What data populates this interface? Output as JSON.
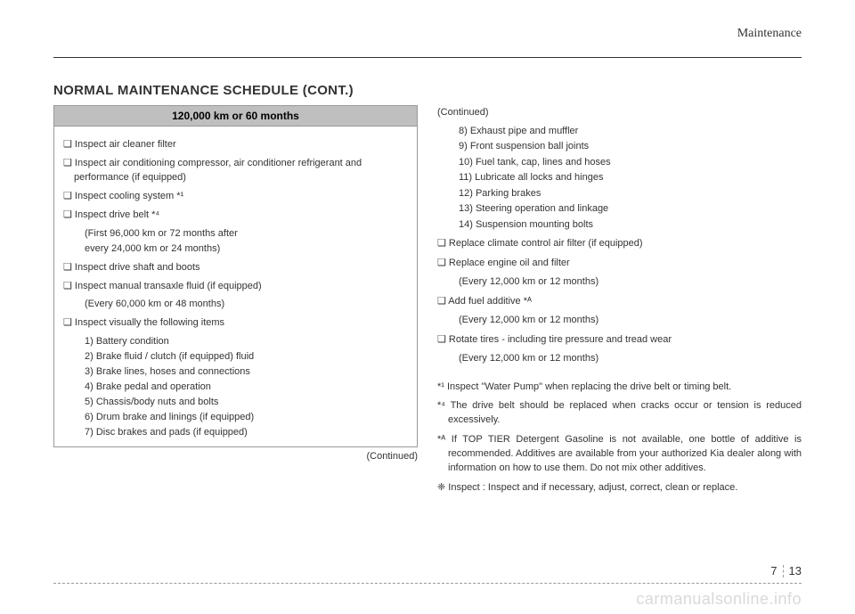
{
  "header": {
    "section": "Maintenance",
    "title": "NORMAL MAINTENANCE SCHEDULE (CONT.)"
  },
  "left": {
    "interval": "120,000 km or 60 months",
    "items": [
      {
        "text": "❑ Inspect air cleaner filter"
      },
      {
        "text": "❑ Inspect air conditioning compressor, air conditioner refrigerant and performance (if equipped)"
      },
      {
        "text": "❑ Inspect cooling system *¹"
      },
      {
        "text": "❑ Inspect drive belt *⁴",
        "subs": [
          "(First 96,000 km or 72 months after",
          " every 24,000 km or 24 months)"
        ]
      },
      {
        "text": "❑ Inspect drive shaft and boots"
      },
      {
        "text": "❑ Inspect manual transaxle fluid (if equipped)",
        "subs": [
          "(Every 60,000 km or 48 months)"
        ]
      },
      {
        "text": "❑ Inspect visually the following items",
        "subs": [
          "1) Battery condition",
          "2) Brake fluid / clutch (if equipped) fluid",
          "3) Brake lines, hoses and connections",
          "4) Brake pedal and operation",
          "5) Chassis/body nuts and bolts",
          "6) Drum brake and linings (if equipped)",
          "7) Disc brakes and pads (if equipped)"
        ]
      }
    ],
    "continued": "(Continued)"
  },
  "right": {
    "continued": "(Continued)",
    "cont_subs": [
      "8) Exhaust pipe and muffler",
      "9) Front suspension ball joints",
      "10) Fuel tank, cap, lines and hoses",
      "11) Lubricate all locks and hinges",
      "12) Parking brakes",
      "13) Steering operation and linkage",
      "14) Suspension mounting bolts"
    ],
    "items": [
      {
        "text": "❑ Replace climate control air filter (if equipped)"
      },
      {
        "text": "❑ Replace engine oil and filter",
        "subs": [
          "(Every 12,000 km or 12 months)"
        ]
      },
      {
        "text": "❑ Add fuel additive *ᴬ",
        "subs": [
          "(Every 12,000 km or 12 months)"
        ]
      },
      {
        "text": "❑ Rotate tires - including tire pressure and tread wear",
        "subs": [
          "(Every 12,000 km or 12 months)"
        ]
      }
    ],
    "footnotes": [
      "*¹ Inspect \"Water Pump\" when replacing the drive belt or timing belt.",
      "*⁴ The drive belt should be replaced when cracks occur or tension is reduced excessively.",
      "*ᴬ If TOP TIER Detergent Gasoline is not available, one bottle of additive is recommended. Additives are available from your authorized Kia dealer along with information on how to use them. Do not mix other additives.",
      "❈ Inspect : Inspect and if necessary, adjust, correct, clean or replace."
    ]
  },
  "footer": {
    "chapter": "7",
    "page": "13",
    "watermark": "carmanualsonline.info"
  }
}
